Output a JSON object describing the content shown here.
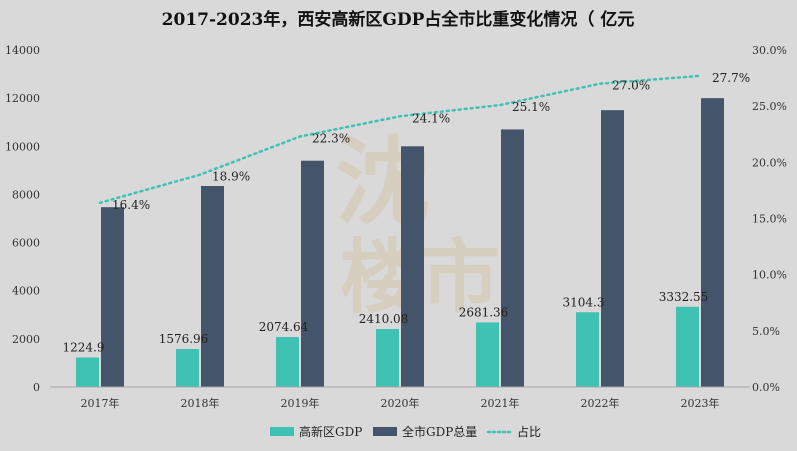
{
  "chart_data": {
    "type": "bar",
    "title": "2017-2023年，西安高新区GDP占全市比重变化情况（ 亿元",
    "categories": [
      "2017年",
      "2018年",
      "2019年",
      "2020年",
      "2021年",
      "2022年",
      "2023年"
    ],
    "series": [
      {
        "name": "高新区GDP",
        "type": "bar",
        "axis": "left",
        "color": "#3fc1b4",
        "values": [
          1224.9,
          1576.96,
          2074.64,
          2410.08,
          2681.36,
          3104.3,
          3332.55
        ],
        "labels": [
          "1224.9",
          "1576.96",
          "2074.64",
          "2410.08",
          "2681.36",
          "3104.3",
          "3332.55"
        ]
      },
      {
        "name": "全市GDP总量",
        "type": "bar",
        "axis": "left",
        "color": "#44546a",
        "values": [
          7470,
          8350,
          9400,
          10000,
          10700,
          11500,
          12000
        ]
      },
      {
        "name": "占比",
        "type": "line",
        "axis": "right",
        "color": "#3fc1b4",
        "values": [
          16.4,
          18.9,
          22.3,
          24.1,
          25.1,
          27.0,
          27.7
        ],
        "labels": [
          "16.4%",
          "18.9%",
          "22.3%",
          "24.1%",
          "25.1%",
          "27.0%",
          "27.7%"
        ]
      }
    ],
    "y_left": {
      "ylim": [
        0,
        14000
      ],
      "ticks": [
        "0",
        "2000",
        "4000",
        "6000",
        "8000",
        "10000",
        "12000",
        "14000"
      ]
    },
    "y_right": {
      "ylim": [
        0,
        30
      ],
      "ticks": [
        "0.0%",
        "5.0%",
        "10.0%",
        "15.0%",
        "20.0%",
        "25.0%",
        "30.0%"
      ]
    },
    "grid": false,
    "legend_position": "bottom"
  }
}
